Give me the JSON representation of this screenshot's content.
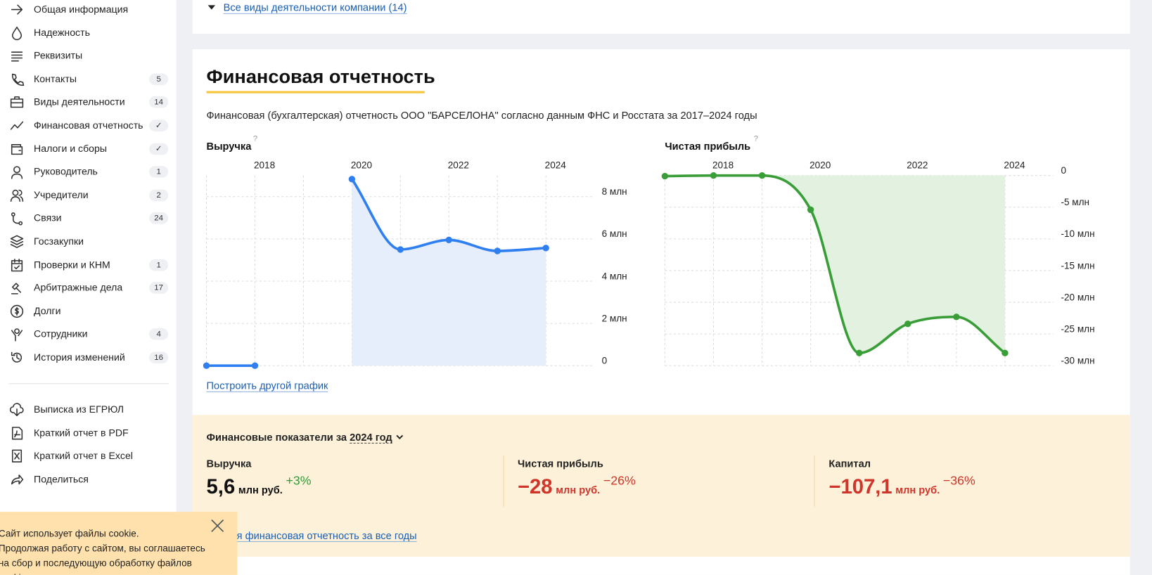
{
  "sidebar": {
    "items": [
      {
        "label": "Общая информация"
      },
      {
        "label": "Надежность"
      },
      {
        "label": "Реквизиты"
      },
      {
        "label": "Контакты",
        "badge": "5"
      },
      {
        "label": "Виды деятельности",
        "badge": "14"
      },
      {
        "label": "Финансовая отчетность",
        "badge": "✓"
      },
      {
        "label": "Налоги и сборы",
        "badge": "✓"
      },
      {
        "label": "Руководитель",
        "badge": "1"
      },
      {
        "label": "Учредители",
        "badge": "2"
      },
      {
        "label": "Связи",
        "badge": "24"
      },
      {
        "label": "Госзакупки"
      },
      {
        "label": "Проверки и КНМ",
        "badge": "1"
      },
      {
        "label": "Арбитражные дела",
        "badge": "17"
      },
      {
        "label": "Долги"
      },
      {
        "label": "Сотрудники",
        "badge": "4"
      },
      {
        "label": "История изменений",
        "badge": "16"
      }
    ],
    "actions": [
      "Выписка из ЕГРЮЛ",
      "Краткий отчет в PDF",
      "Краткий отчет в Excel",
      "Поделиться"
    ]
  },
  "activities_link": "Все виды деятельности компании (14)",
  "section": {
    "title": "Финансовая отчетность",
    "description": "Финансовая (бухгалтерская) отчетность ООО \"БАРСЕЛОНА\" согласно данным ФНС и Росстата за 2017–2024 годы",
    "chart_link": "Построить другой график"
  },
  "chart_data": [
    {
      "type": "line",
      "title": "Выручка",
      "title_hint": "?",
      "color": "#2f7ff0",
      "fill": "#e6eefb",
      "x": [
        2017,
        2018,
        2019,
        2020,
        2021,
        2022,
        2023,
        2024
      ],
      "values": [
        0,
        0,
        null,
        8.83,
        5.5,
        5.95,
        5.43,
        5.57
      ],
      "xlim": [
        2017,
        2025
      ],
      "xticks": [
        2018,
        2020,
        2022,
        2024
      ],
      "ylim": [
        0,
        9
      ],
      "yticks": [
        0,
        {
          "value": 2,
          "label": "2 млн"
        },
        {
          "value": 4,
          "label": "4 млн"
        },
        {
          "value": 6,
          "label": "6 млн"
        },
        {
          "value": 8,
          "label": "8 млн"
        }
      ],
      "grid": true
    },
    {
      "type": "line",
      "title": "Чистая прибыль",
      "title_hint": "?",
      "color": "#3a9e38",
      "fill": "#e3f1e1",
      "x": [
        2017,
        2018,
        2019,
        2020,
        2021,
        2022,
        2023,
        2024
      ],
      "values": [
        -0.1,
        0,
        0,
        -5.4,
        -28,
        -23.4,
        -22.3,
        -28
      ],
      "xlim": [
        2017,
        2025
      ],
      "xticks": [
        2018,
        2020,
        2022,
        2024
      ],
      "ylim": [
        -30,
        0
      ],
      "yticks": [
        0,
        {
          "value": -5,
          "label": "-5 млн"
        },
        {
          "value": -10,
          "label": "-10 млн"
        },
        {
          "value": -15,
          "label": "-15 млн"
        },
        {
          "value": -20,
          "label": "-20 млн"
        },
        {
          "value": -25,
          "label": "-25 млн"
        },
        {
          "value": -30,
          "label": "-30 млн"
        }
      ],
      "grid": true
    }
  ],
  "indicators": {
    "heading": "Финансовые показатели за",
    "year": "2024 год",
    "items": [
      {
        "label": "Выручка",
        "value": "5,6",
        "unit": "млн руб.",
        "change": "+3%",
        "tone": "positive"
      },
      {
        "label": "Чистая прибыль",
        "value": "−28",
        "unit": "млн руб.",
        "change": "−26%",
        "tone": "negative"
      },
      {
        "label": "Капитал",
        "value": "−107,1",
        "unit": "млн руб.",
        "change": "−36%",
        "tone": "negative"
      }
    ],
    "full_link": "Полная финансовая отчетность за все годы"
  },
  "cookie": {
    "line1": "Сайт использует файлы cookie.",
    "line2": "Продолжая работу с сайтом, вы соглашаетесь на сбор и последующую обработку файлов cookie и"
  }
}
